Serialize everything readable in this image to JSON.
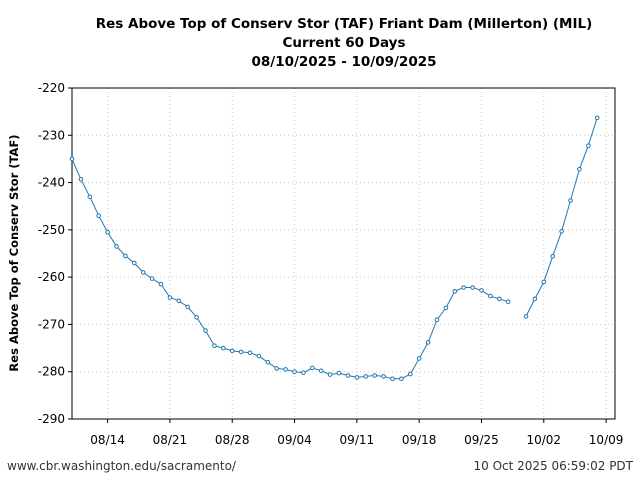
{
  "footer": {
    "left": "www.cbr.washington.edu/sacramento/",
    "right": "10 Oct 2025 06:59:02 PDT"
  },
  "chart_data": {
    "type": "line",
    "title": [
      "Res Above Top of Conserv Stor (TAF) Friant Dam (Millerton) (MIL)",
      "Current 60 Days",
      "08/10/2025 - 10/09/2025"
    ],
    "xlabel": "",
    "ylabel": "Res Above Top of Conserv Stor (TAF)",
    "x_range": [
      "2025-08-10",
      "2025-10-10"
    ],
    "xticks": [
      {
        "date": "2025-08-14",
        "label": "08/14"
      },
      {
        "date": "2025-08-21",
        "label": "08/21"
      },
      {
        "date": "2025-08-28",
        "label": "08/28"
      },
      {
        "date": "2025-09-04",
        "label": "09/04"
      },
      {
        "date": "2025-09-11",
        "label": "09/11"
      },
      {
        "date": "2025-09-18",
        "label": "09/18"
      },
      {
        "date": "2025-09-25",
        "label": "09/25"
      },
      {
        "date": "2025-10-02",
        "label": "10/02"
      },
      {
        "date": "2025-10-09",
        "label": "10/09"
      }
    ],
    "ylim": [
      -290,
      -220
    ],
    "yticks": [
      -220,
      -230,
      -240,
      -250,
      -260,
      -270,
      -280,
      -290
    ],
    "grid": true,
    "line_color": "#1f77b4",
    "series": [
      {
        "segments": [
          [
            [
              "2025-08-10",
              -235.0
            ],
            [
              "2025-08-11",
              -239.3
            ],
            [
              "2025-08-12",
              -243.0
            ],
            [
              "2025-08-13",
              -247.0
            ],
            [
              "2025-08-14",
              -250.5
            ],
            [
              "2025-08-15",
              -253.5
            ],
            [
              "2025-08-16",
              -255.5
            ],
            [
              "2025-08-17",
              -257.0
            ],
            [
              "2025-08-18",
              -259.0
            ],
            [
              "2025-08-19",
              -260.3
            ],
            [
              "2025-08-20",
              -261.5
            ],
            [
              "2025-08-21",
              -264.3
            ],
            [
              "2025-08-22",
              -265.0
            ],
            [
              "2025-08-23",
              -266.3
            ],
            [
              "2025-08-24",
              -268.5
            ],
            [
              "2025-08-25",
              -271.3
            ],
            [
              "2025-08-26",
              -274.5
            ],
            [
              "2025-08-27",
              -275.0
            ],
            [
              "2025-08-28",
              -275.6
            ],
            [
              "2025-08-29",
              -275.8
            ],
            [
              "2025-08-30",
              -276.0
            ],
            [
              "2025-08-31",
              -276.7
            ],
            [
              "2025-09-01",
              -278.0
            ],
            [
              "2025-09-02",
              -279.3
            ],
            [
              "2025-09-03",
              -279.5
            ],
            [
              "2025-09-04",
              -280.0
            ],
            [
              "2025-09-05",
              -280.2
            ],
            [
              "2025-09-06",
              -279.2
            ],
            [
              "2025-09-07",
              -279.8
            ],
            [
              "2025-09-08",
              -280.6
            ],
            [
              "2025-09-09",
              -280.3
            ],
            [
              "2025-09-10",
              -280.8
            ],
            [
              "2025-09-11",
              -281.2
            ],
            [
              "2025-09-12",
              -281.0
            ],
            [
              "2025-09-13",
              -280.8
            ],
            [
              "2025-09-14",
              -281.0
            ],
            [
              "2025-09-15",
              -281.5
            ],
            [
              "2025-09-16",
              -281.5
            ],
            [
              "2025-09-17",
              -280.5
            ],
            [
              "2025-09-18",
              -277.2
            ],
            [
              "2025-09-19",
              -273.8
            ],
            [
              "2025-09-20",
              -269.0
            ],
            [
              "2025-09-21",
              -266.5
            ],
            [
              "2025-09-22",
              -263.0
            ],
            [
              "2025-09-23",
              -262.2
            ],
            [
              "2025-09-24",
              -262.2
            ],
            [
              "2025-09-25",
              -262.8
            ],
            [
              "2025-09-26",
              -264.0
            ],
            [
              "2025-09-27",
              -264.6
            ],
            [
              "2025-09-28",
              -265.2
            ]
          ],
          [
            [
              "2025-09-30",
              -268.3
            ],
            [
              "2025-10-01",
              -264.6
            ],
            [
              "2025-10-02",
              -261.0
            ],
            [
              "2025-10-03",
              -255.6
            ],
            [
              "2025-10-04",
              -250.3
            ],
            [
              "2025-10-05",
              -243.8
            ],
            [
              "2025-10-06",
              -237.2
            ],
            [
              "2025-10-07",
              -232.2
            ],
            [
              "2025-10-08",
              -226.3
            ]
          ]
        ]
      }
    ]
  }
}
